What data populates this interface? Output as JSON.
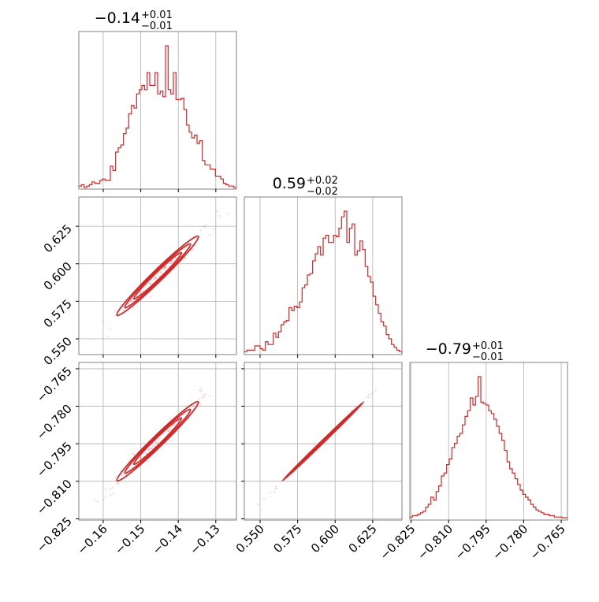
{
  "chart_data": {
    "type": "corner",
    "color": "#d62728",
    "parameters": [
      {
        "title": {
          "median": "−0.14",
          "plus": "+0.01",
          "minus": "−0.01"
        },
        "range": [
          -0.1665,
          -0.1245
        ],
        "ticks": [
          -0.16,
          -0.15,
          -0.14,
          -0.13
        ],
        "tick_labels": [
          "−0.16",
          "−0.15",
          "−0.14",
          "−0.13"
        ]
      },
      {
        "title": {
          "median": "0.59",
          "plus": "+0.02",
          "minus": "−0.02"
        },
        "range": [
          0.5395,
          0.6445
        ],
        "ticks": [
          0.55,
          0.575,
          0.6,
          0.625
        ],
        "tick_labels": [
          "0.550",
          "0.575",
          "0.600",
          "0.625"
        ]
      },
      {
        "title": {
          "median": "−0.79",
          "plus": "+0.01",
          "minus": "−0.01"
        },
        "range": [
          -0.8255,
          -0.7625
        ],
        "ticks": [
          -0.825,
          -0.81,
          -0.795,
          -0.78,
          -0.765
        ],
        "tick_labels": [
          "−0.825",
          "−0.810",
          "−0.795",
          "−0.780",
          "−0.765"
        ]
      }
    ],
    "histograms": [
      [
        0.01,
        0.02,
        0.0,
        0.01,
        0.02,
        0.04,
        0.03,
        0.03,
        0.05,
        0.06,
        0.05,
        0.05,
        0.15,
        0.12,
        0.25,
        0.28,
        0.3,
        0.38,
        0.42,
        0.52,
        0.58,
        0.56,
        0.66,
        0.69,
        0.72,
        0.69,
        0.81,
        0.72,
        0.72,
        0.81,
        0.66,
        0.68,
        0.64,
        1.0,
        0.69,
        0.66,
        0.81,
        0.62,
        0.62,
        0.63,
        0.55,
        0.44,
        0.39,
        0.35,
        0.37,
        0.31,
        0.33,
        0.19,
        0.16,
        0.16,
        0.13,
        0.13,
        0.08,
        0.08,
        0.06,
        0.03,
        0.02,
        0.01,
        0.01,
        0.0
      ],
      [
        0.01,
        0.02,
        0.02,
        0.02,
        0.05,
        0.05,
        0.03,
        0.02,
        0.08,
        0.06,
        0.06,
        0.14,
        0.11,
        0.15,
        0.2,
        0.22,
        0.23,
        0.32,
        0.3,
        0.33,
        0.32,
        0.36,
        0.46,
        0.48,
        0.55,
        0.56,
        0.65,
        0.7,
        0.75,
        0.69,
        0.81,
        0.83,
        0.78,
        0.78,
        0.83,
        0.82,
        0.88,
        0.96,
        1.0,
        0.78,
        0.88,
        0.91,
        0.69,
        0.72,
        0.79,
        0.73,
        0.61,
        0.54,
        0.5,
        0.4,
        0.34,
        0.28,
        0.22,
        0.19,
        0.13,
        0.1,
        0.06,
        0.04,
        0.02,
        0.01
      ],
      [
        0.01,
        0.02,
        0.02,
        0.03,
        0.04,
        0.05,
        0.08,
        0.1,
        0.15,
        0.13,
        0.19,
        0.23,
        0.3,
        0.32,
        0.38,
        0.42,
        0.5,
        0.53,
        0.58,
        0.6,
        0.66,
        0.72,
        0.76,
        0.85,
        0.8,
        0.86,
        1.0,
        0.82,
        0.81,
        0.8,
        0.76,
        0.74,
        0.7,
        0.65,
        0.6,
        0.55,
        0.48,
        0.4,
        0.35,
        0.32,
        0.28,
        0.24,
        0.2,
        0.17,
        0.15,
        0.13,
        0.1,
        0.08,
        0.06,
        0.05,
        0.04,
        0.03,
        0.03,
        0.02,
        0.02,
        0.01,
        0.01,
        0.01,
        0.005,
        0.005
      ]
    ],
    "correlations": {
      "1_0": {
        "slope": 2.5
      },
      "2_0": {
        "slope": 1.5
      },
      "2_1": {
        "slope": 0.6
      }
    },
    "grid": true,
    "legend": "none"
  }
}
